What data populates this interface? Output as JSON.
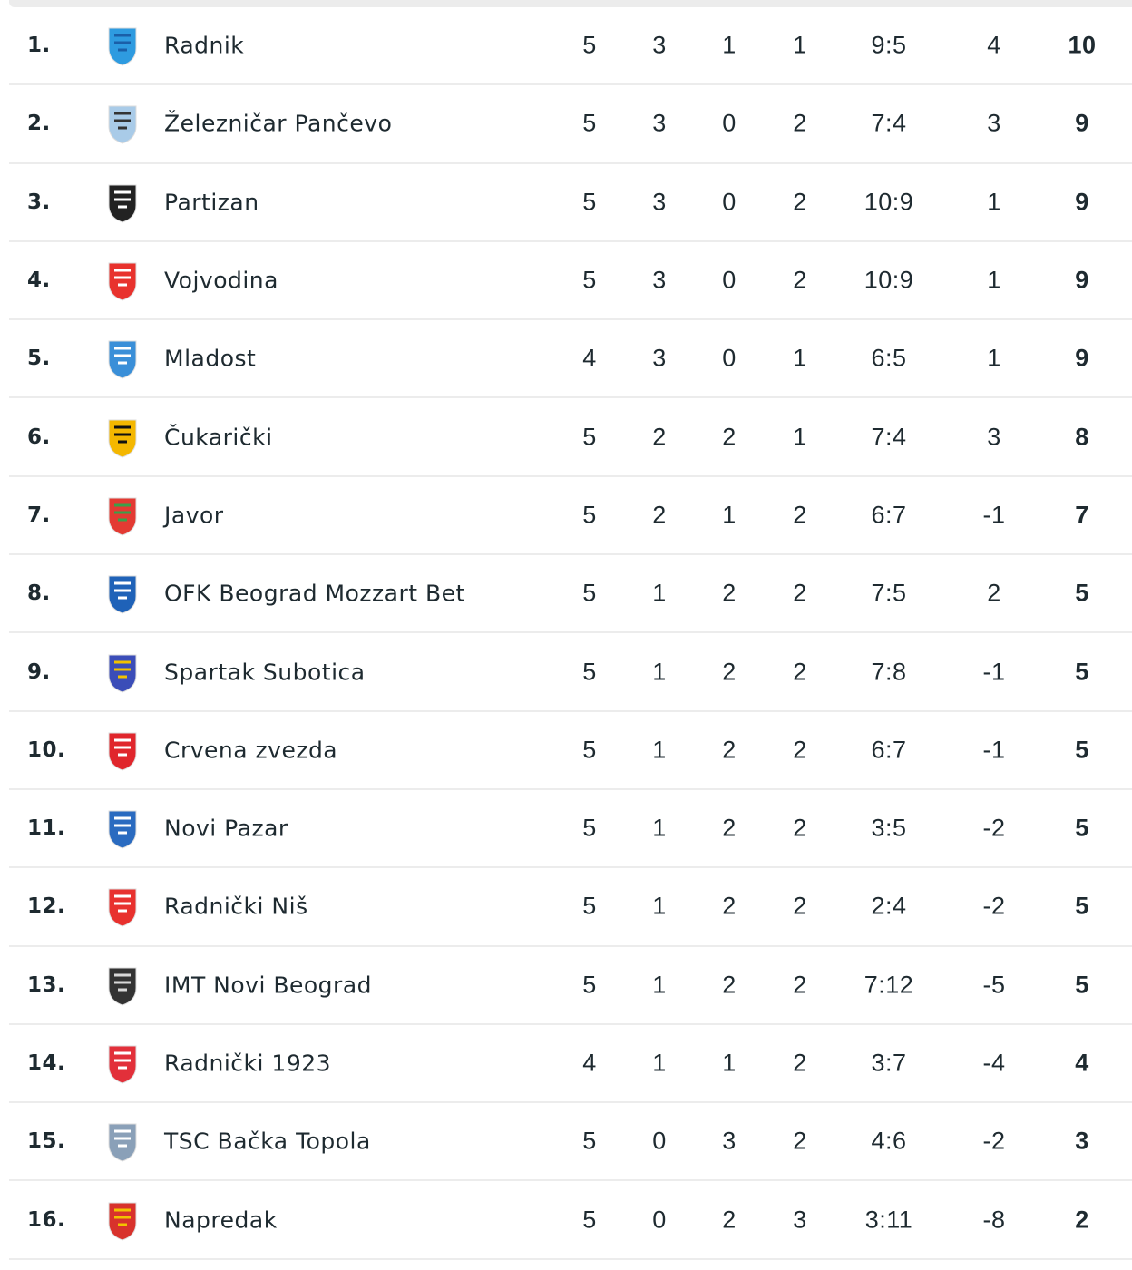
{
  "standings": [
    {
      "rank": "1.",
      "team": "Radnik",
      "played": "5",
      "won": "3",
      "drawn": "1",
      "lost": "1",
      "goals": "9:5",
      "diff": "4",
      "points": "10",
      "logo_color": "#2e9be0",
      "logo_accent": "#1a5fa8"
    },
    {
      "rank": "2.",
      "team": "Železničar Pančevo",
      "played": "5",
      "won": "3",
      "drawn": "0",
      "lost": "2",
      "goals": "7:4",
      "diff": "3",
      "points": "9",
      "logo_color": "#a9cbe8",
      "logo_accent": "#333333"
    },
    {
      "rank": "3.",
      "team": "Partizan",
      "played": "5",
      "won": "3",
      "drawn": "0",
      "lost": "2",
      "goals": "10:9",
      "diff": "1",
      "points": "9",
      "logo_color": "#222222",
      "logo_accent": "#ffffff"
    },
    {
      "rank": "4.",
      "team": "Vojvodina",
      "played": "5",
      "won": "3",
      "drawn": "0",
      "lost": "2",
      "goals": "10:9",
      "diff": "1",
      "points": "9",
      "logo_color": "#e8322d",
      "logo_accent": "#ffffff"
    },
    {
      "rank": "5.",
      "team": "Mladost",
      "played": "4",
      "won": "3",
      "drawn": "0",
      "lost": "1",
      "goals": "6:5",
      "diff": "1",
      "points": "9",
      "logo_color": "#3a8fd8",
      "logo_accent": "#ffffff"
    },
    {
      "rank": "6.",
      "team": "Čukarički",
      "played": "5",
      "won": "2",
      "drawn": "2",
      "lost": "1",
      "goals": "7:4",
      "diff": "3",
      "points": "8",
      "logo_color": "#f4b700",
      "logo_accent": "#111111"
    },
    {
      "rank": "7.",
      "team": "Javor",
      "played": "5",
      "won": "2",
      "drawn": "1",
      "lost": "2",
      "goals": "6:7",
      "diff": "-1",
      "points": "7",
      "logo_color": "#e33a33",
      "logo_accent": "#3aa04a"
    },
    {
      "rank": "8.",
      "team": "OFK Beograd Mozzart Bet",
      "played": "5",
      "won": "1",
      "drawn": "2",
      "lost": "2",
      "goals": "7:5",
      "diff": "2",
      "points": "5",
      "logo_color": "#1f62b8",
      "logo_accent": "#ffffff"
    },
    {
      "rank": "9.",
      "team": "Spartak Subotica",
      "played": "5",
      "won": "1",
      "drawn": "2",
      "lost": "2",
      "goals": "7:8",
      "diff": "-1",
      "points": "5",
      "logo_color": "#3b4db8",
      "logo_accent": "#f2c200"
    },
    {
      "rank": "10.",
      "team": "Crvena zvezda",
      "played": "5",
      "won": "1",
      "drawn": "2",
      "lost": "2",
      "goals": "6:7",
      "diff": "-1",
      "points": "5",
      "logo_color": "#e0262c",
      "logo_accent": "#ffffff"
    },
    {
      "rank": "11.",
      "team": "Novi Pazar",
      "played": "5",
      "won": "1",
      "drawn": "2",
      "lost": "2",
      "goals": "3:5",
      "diff": "-2",
      "points": "5",
      "logo_color": "#2a6bc0",
      "logo_accent": "#ffffff"
    },
    {
      "rank": "12.",
      "team": "Radnički Niš",
      "played": "5",
      "won": "1",
      "drawn": "2",
      "lost": "2",
      "goals": "2:4",
      "diff": "-2",
      "points": "5",
      "logo_color": "#e8312e",
      "logo_accent": "#ffffff"
    },
    {
      "rank": "13.",
      "team": "IMT Novi Beograd",
      "played": "5",
      "won": "1",
      "drawn": "2",
      "lost": "2",
      "goals": "7:12",
      "diff": "-5",
      "points": "5",
      "logo_color": "#333333",
      "logo_accent": "#d8d8d8"
    },
    {
      "rank": "14.",
      "team": "Radnički 1923",
      "played": "4",
      "won": "1",
      "drawn": "1",
      "lost": "2",
      "goals": "3:7",
      "diff": "-4",
      "points": "4",
      "logo_color": "#e2303a",
      "logo_accent": "#ffffff"
    },
    {
      "rank": "15.",
      "team": "TSC Bačka Topola",
      "played": "5",
      "won": "0",
      "drawn": "3",
      "lost": "2",
      "goals": "4:6",
      "diff": "-2",
      "points": "3",
      "logo_color": "#8aa0b8",
      "logo_accent": "#ffffff"
    },
    {
      "rank": "16.",
      "team": "Napredak",
      "played": "5",
      "won": "0",
      "drawn": "2",
      "lost": "3",
      "goals": "3:11",
      "diff": "-8",
      "points": "2",
      "logo_color": "#d8322c",
      "logo_accent": "#f2c200"
    }
  ]
}
